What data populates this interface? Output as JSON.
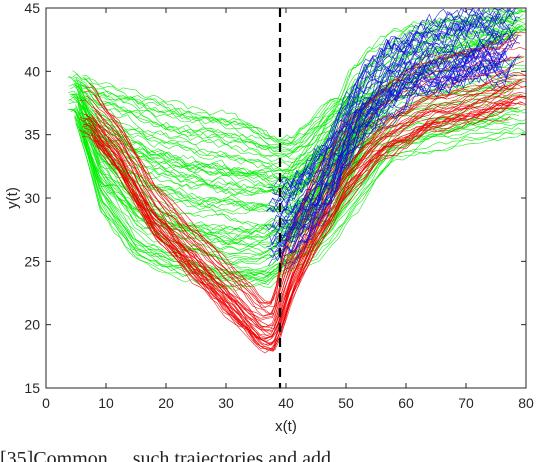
{
  "chart_data": {
    "type": "line",
    "title": "",
    "xlabel": "x(t)",
    "ylabel": "y(t)",
    "xlim": [
      0,
      80
    ],
    "ylim": [
      15,
      45
    ],
    "xticks": [
      0,
      10,
      20,
      30,
      40,
      50,
      60,
      70,
      80
    ],
    "yticks": [
      15,
      20,
      25,
      30,
      35,
      40,
      45
    ],
    "grid": false,
    "legend": "none",
    "reference_line": {
      "x": 39,
      "style": "dashed",
      "color": "#000000"
    },
    "series": [
      {
        "color": "#00ee00",
        "groups": [
          {
            "kind": "flat",
            "count": 55,
            "x": [
              5,
              9,
              17,
              24,
              31,
              38,
              41,
              44,
              48,
              53,
              55
            ],
            "y": [
              38,
              35,
              33,
              32,
              31.5,
              31,
              31,
              32,
              33,
              36,
              36
            ],
            "spread": [
              2,
              4,
              5,
              5,
              5,
              4,
              4,
              4,
              5,
              2,
              2
            ]
          },
          {
            "kind": "drop",
            "count": 30,
            "x": [
              5,
              9,
              15,
              22,
              30,
              37,
              40,
              45,
              52,
              58,
              65,
              72,
              79
            ],
            "y": [
              38,
              32,
              28,
              26,
              25,
              25,
              26,
              28,
              33,
              36,
              37,
              37.5,
              38
            ],
            "spread": [
              2,
              3,
              3,
              2,
              2,
              2,
              2,
              3,
              4,
              3,
              3,
              3,
              3
            ]
          },
          {
            "kind": "rise",
            "count": 30,
            "x": [
              40,
              44,
              48,
              51,
              54,
              58,
              64,
              72,
              79
            ],
            "y": [
              29,
              31,
              34,
              37,
              39,
              40.5,
              42,
              43,
              44
            ],
            "spread": [
              3,
              3,
              3,
              3,
              2.5,
              2.5,
              2,
              1.5,
              1
            ]
          }
        ]
      },
      {
        "color": "#ee0000",
        "groups": [
          {
            "kind": "vshape",
            "count": 40,
            "x": [
              7,
              12,
              18,
              24,
              30,
              34,
              36,
              38,
              39,
              41,
              45,
              50,
              56,
              64,
              72,
              79
            ],
            "y": [
              37,
              34,
              29,
              26,
              23,
              21,
              20,
              20,
              22,
              25,
              29,
              33,
              36,
              38,
              39,
              40
            ],
            "spread": [
              2,
              2,
              2,
              2,
              2,
              2,
              2,
              2,
              3,
              3,
              3,
              3,
              3,
              3,
              3,
              3
            ]
          }
        ]
      },
      {
        "color": "#1111dd",
        "groups": [
          {
            "kind": "cluster",
            "count": 40,
            "x": [
              38,
              41,
              44,
              47,
              50,
              53,
              57,
              63,
              70,
              77
            ],
            "y": [
              28,
              28.5,
              30,
              32,
              35,
              37.5,
              39.5,
              41,
              42,
              42.5
            ],
            "spread": [
              3,
              3,
              3,
              3,
              3,
              3,
              3,
              3,
              3,
              3
            ]
          }
        ]
      }
    ]
  },
  "caption": "[35]Common ... such trajectories and add"
}
